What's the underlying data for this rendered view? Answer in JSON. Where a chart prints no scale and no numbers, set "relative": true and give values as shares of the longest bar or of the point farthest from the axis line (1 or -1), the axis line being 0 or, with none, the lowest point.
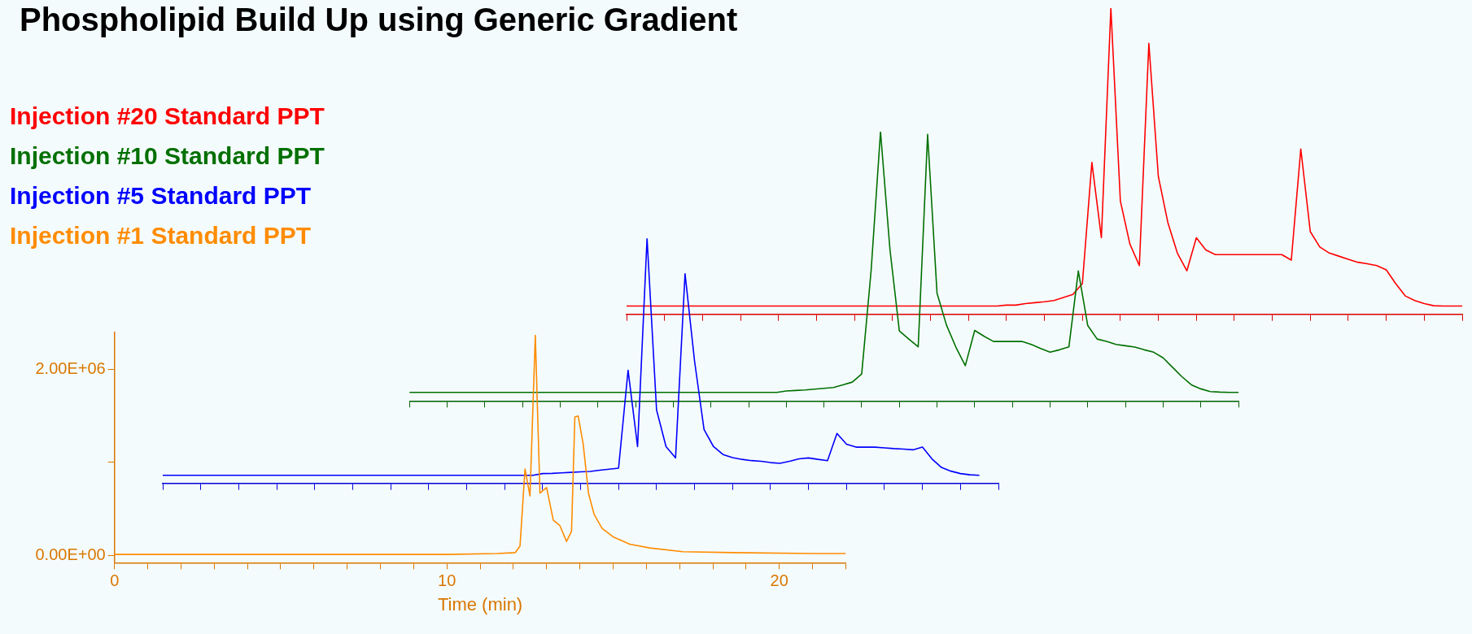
{
  "chart_data": [
    {
      "type": "line",
      "title": "Phospholipid Build Up using Generic Gradient",
      "relative": true,
      "categories": [
        null,
        null,
        null,
        null,
        null,
        null,
        null,
        null,
        null,
        null,
        null,
        null,
        null,
        null,
        null,
        null,
        null,
        null,
        null,
        null,
        null,
        null,
        null,
        null,
        null,
        null,
        null,
        null,
        null,
        null,
        null,
        null,
        null,
        null,
        null,
        null,
        null,
        null,
        null,
        null,
        null,
        null,
        null,
        null,
        null,
        null,
        null,
        null,
        null,
        null,
        null,
        null,
        null,
        null,
        null,
        null,
        null,
        null,
        null,
        null,
        null,
        null,
        null,
        null,
        null,
        null,
        null,
        null,
        null,
        null,
        null,
        null,
        null,
        null,
        null,
        null,
        null,
        null,
        null,
        null,
        null,
        null,
        null,
        null,
        null,
        null,
        null,
        null,
        null
      ],
      "series": [
        {
          "name": "Injection #20 Standard PPT",
          "color": "#ff0000",
          "values": [
            0.027,
            0.027,
            0.027,
            0.027,
            0.027,
            0.027,
            0.027,
            0.027,
            0.027,
            0.027,
            0.027,
            0.027,
            0.027,
            0.027,
            0.027,
            0.027,
            0.027,
            0.027,
            0.027,
            0.027,
            0.027,
            0.027,
            0.027,
            0.027,
            0.027,
            0.027,
            0.027,
            0.027,
            0.027,
            0.027,
            0.027,
            0.027,
            0.027,
            0.027,
            0.027,
            0.027,
            0.027,
            0.027,
            0.027,
            0.027,
            0.03,
            0.03,
            0.035,
            0.038,
            0.041,
            0.045,
            0.055,
            0.065,
            0.1,
            0.496,
            0.25,
            1.0,
            0.37,
            0.23,
            0.159,
            0.885,
            0.45,
            0.3,
            0.2,
            0.142,
            0.25,
            0.21,
            0.195,
            0.195,
            0.195,
            0.195,
            0.195,
            0.195,
            0.195,
            0.195,
            0.177,
            0.54,
            0.27,
            0.22,
            0.2,
            0.19,
            0.18,
            0.17,
            0.165,
            0.159,
            0.145,
            0.1,
            0.06,
            0.045,
            0.035,
            0.028,
            0.027,
            0.027,
            0.027
          ]
        }
      ]
    },
    {
      "type": "line",
      "relative": true,
      "categories": [
        null,
        null,
        null,
        null,
        null,
        null,
        null,
        null,
        null,
        null,
        null,
        null,
        null,
        null,
        null,
        null,
        null,
        null,
        null,
        null,
        null,
        null,
        null,
        null,
        null,
        null,
        null,
        null,
        null,
        null,
        null,
        null,
        null,
        null,
        null,
        null,
        null,
        null,
        null,
        null,
        null,
        null,
        null,
        null,
        null,
        null,
        null,
        null,
        null,
        null,
        null,
        null,
        null,
        null,
        null,
        null,
        null,
        null,
        null,
        null,
        null,
        null,
        null,
        null,
        null,
        null,
        null,
        null,
        null,
        null,
        null,
        null,
        null,
        null,
        null,
        null,
        null,
        null,
        null,
        null,
        null,
        null,
        null,
        null,
        null,
        null,
        null,
        null,
        null
      ],
      "series": [
        {
          "name": "Injection #10 Standard PPT",
          "color": "#007000",
          "values": [
            0.032,
            0.032,
            0.032,
            0.032,
            0.032,
            0.032,
            0.032,
            0.032,
            0.032,
            0.032,
            0.032,
            0.032,
            0.032,
            0.032,
            0.032,
            0.032,
            0.032,
            0.032,
            0.032,
            0.032,
            0.032,
            0.032,
            0.032,
            0.032,
            0.032,
            0.032,
            0.032,
            0.032,
            0.032,
            0.032,
            0.032,
            0.032,
            0.032,
            0.032,
            0.032,
            0.032,
            0.032,
            0.032,
            0.032,
            0.032,
            0.037,
            0.039,
            0.041,
            0.044,
            0.047,
            0.05,
            0.06,
            0.07,
            0.1,
            0.483,
            1.0,
            0.563,
            0.26,
            0.23,
            0.201,
            0.99,
            0.4,
            0.282,
            0.2,
            0.131,
            0.262,
            0.24,
            0.221,
            0.221,
            0.221,
            0.221,
            0.21,
            0.195,
            0.181,
            0.19,
            0.201,
            0.483,
            0.28,
            0.23,
            0.221,
            0.21,
            0.205,
            0.2,
            0.19,
            0.181,
            0.16,
            0.125,
            0.09,
            0.06,
            0.045,
            0.035,
            0.033,
            0.032,
            0.032
          ]
        }
      ]
    },
    {
      "type": "line",
      "relative": true,
      "categories": [
        null,
        null,
        null,
        null,
        null,
        null,
        null,
        null,
        null,
        null,
        null,
        null,
        null,
        null,
        null,
        null,
        null,
        null,
        null,
        null,
        null,
        null,
        null,
        null,
        null,
        null,
        null,
        null,
        null,
        null,
        null,
        null,
        null,
        null,
        null,
        null,
        null,
        null,
        null,
        null,
        null,
        null,
        null,
        null,
        null,
        null,
        null,
        null,
        null,
        null,
        null,
        null,
        null,
        null,
        null,
        null,
        null,
        null,
        null,
        null,
        null,
        null,
        null,
        null,
        null,
        null,
        null,
        null,
        null,
        null,
        null,
        null,
        null,
        null,
        null,
        null,
        null,
        null,
        null,
        null,
        null,
        null,
        null,
        null,
        null,
        null,
        null,
        null,
        null
      ],
      "series": [
        {
          "name": "Injection #5 Standard PPT",
          "color": "#0000ff",
          "values": [
            0.033,
            0.033,
            0.033,
            0.033,
            0.033,
            0.033,
            0.033,
            0.033,
            0.033,
            0.033,
            0.033,
            0.033,
            0.033,
            0.033,
            0.033,
            0.033,
            0.033,
            0.033,
            0.033,
            0.033,
            0.033,
            0.033,
            0.033,
            0.033,
            0.033,
            0.033,
            0.033,
            0.033,
            0.033,
            0.033,
            0.033,
            0.033,
            0.033,
            0.033,
            0.033,
            0.033,
            0.033,
            0.033,
            0.033,
            0.033,
            0.04,
            0.041,
            0.043,
            0.045,
            0.047,
            0.049,
            0.054,
            0.058,
            0.062,
            0.462,
            0.15,
            1.0,
            0.3,
            0.15,
            0.104,
            0.856,
            0.5,
            0.22,
            0.15,
            0.118,
            0.105,
            0.098,
            0.093,
            0.09,
            0.085,
            0.082,
            0.09,
            0.1,
            0.104,
            0.098,
            0.093,
            0.204,
            0.16,
            0.148,
            0.148,
            0.148,
            0.145,
            0.142,
            0.14,
            0.137,
            0.148,
            0.1,
            0.065,
            0.05,
            0.04,
            0.035,
            0.033,
            null,
            null
          ]
        }
      ]
    },
    {
      "type": "line",
      "xlabel": "Time (min)",
      "xlim": [
        0,
        22
      ],
      "xticks": [
        0,
        {
          "value": 1,
          "label": null
        },
        {
          "value": 2,
          "label": null
        },
        {
          "value": 3,
          "label": null
        },
        {
          "value": 4,
          "label": null
        },
        {
          "value": 5,
          "label": null
        },
        {
          "value": 6,
          "label": null
        },
        {
          "value": 7,
          "label": null
        },
        {
          "value": 8,
          "label": null
        },
        {
          "value": 9,
          "label": null
        },
        10,
        {
          "value": 11,
          "label": null
        },
        {
          "value": 12,
          "label": null
        },
        {
          "value": 13,
          "label": null
        },
        {
          "value": 14,
          "label": null
        },
        {
          "value": 15,
          "label": null
        },
        {
          "value": 16,
          "label": null
        },
        {
          "value": 17,
          "label": null
        },
        {
          "value": 18,
          "label": null
        },
        {
          "value": 19,
          "label": null
        },
        20,
        {
          "value": 21,
          "label": null
        },
        {
          "value": 22,
          "label": null
        }
      ],
      "ylim": [
        -80000,
        2400000
      ],
      "yticks": [
        {
          "value": 0,
          "label": "0.00E+00"
        },
        {
          "value": 1000000,
          "label": null
        },
        {
          "value": 2000000,
          "label": "2.00E+06"
        }
      ],
      "series": [
        {
          "name": "Injection #1 Standard PPT",
          "color": "#ff8c00",
          "x": [
            0,
            5,
            10,
            11.5,
            12.06,
            12.2,
            12.35,
            12.5,
            12.66,
            12.8,
            13.0,
            13.2,
            13.4,
            13.6,
            13.75,
            13.85,
            13.95,
            14.1,
            14.26,
            14.43,
            14.67,
            15.0,
            15.5,
            16.1,
            17.1,
            18.6,
            21,
            22
          ],
          "values": [
            10000,
            10000,
            10000,
            20000,
            30000,
            100000,
            930000,
            640000,
            2370000,
            670000,
            730000,
            380000,
            320000,
            150000,
            260000,
            1490000,
            1500000,
            1200000,
            670000,
            440000,
            290000,
            200000,
            120000,
            80000,
            40000,
            30000,
            20000,
            20000
          ]
        }
      ]
    }
  ]
}
